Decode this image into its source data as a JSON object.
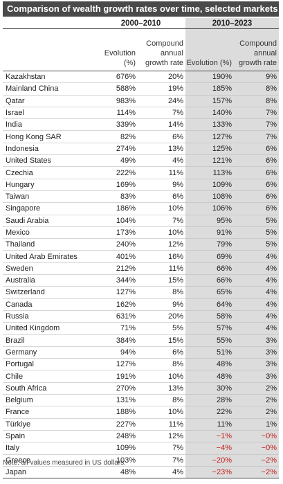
{
  "title": "Comparison of wealth growth rates over time, selected markets",
  "periods": [
    "2000–2010",
    "2010–2023"
  ],
  "headers": {
    "evolution": "Evolution (%)",
    "cagr": "Compound annual growth rate"
  },
  "rows": [
    {
      "country": "Kazakhstan",
      "evo1": "676%",
      "cagr1": "20%",
      "evo2": "190%",
      "cagr2": "9%"
    },
    {
      "country": "Mainland China",
      "evo1": "588%",
      "cagr1": "19%",
      "evo2": "185%",
      "cagr2": "8%"
    },
    {
      "country": "Qatar",
      "evo1": "983%",
      "cagr1": "24%",
      "evo2": "157%",
      "cagr2": "8%"
    },
    {
      "country": "Israel",
      "evo1": "114%",
      "cagr1": "7%",
      "evo2": "140%",
      "cagr2": "7%"
    },
    {
      "country": "India",
      "evo1": "339%",
      "cagr1": "14%",
      "evo2": "133%",
      "cagr2": "7%"
    },
    {
      "country": "Hong Kong SAR",
      "evo1": "82%",
      "cagr1": "6%",
      "evo2": "127%",
      "cagr2": "7%"
    },
    {
      "country": "Indonesia",
      "evo1": "274%",
      "cagr1": "13%",
      "evo2": "125%",
      "cagr2": "6%"
    },
    {
      "country": "United States",
      "evo1": "49%",
      "cagr1": "4%",
      "evo2": "121%",
      "cagr2": "6%"
    },
    {
      "country": "Czechia",
      "evo1": "222%",
      "cagr1": "11%",
      "evo2": "113%",
      "cagr2": "6%"
    },
    {
      "country": "Hungary",
      "evo1": "169%",
      "cagr1": "9%",
      "evo2": "109%",
      "cagr2": "6%"
    },
    {
      "country": "Taiwan",
      "evo1": "83%",
      "cagr1": "6%",
      "evo2": "108%",
      "cagr2": "6%"
    },
    {
      "country": "Singapore",
      "evo1": "186%",
      "cagr1": "10%",
      "evo2": "106%",
      "cagr2": "6%"
    },
    {
      "country": "Saudi Arabia",
      "evo1": "104%",
      "cagr1": "7%",
      "evo2": "95%",
      "cagr2": "5%"
    },
    {
      "country": "Mexico",
      "evo1": "173%",
      "cagr1": "10%",
      "evo2": "91%",
      "cagr2": "5%"
    },
    {
      "country": "Thailand",
      "evo1": "240%",
      "cagr1": "12%",
      "evo2": "79%",
      "cagr2": "5%"
    },
    {
      "country": "United Arab Emirates",
      "evo1": "401%",
      "cagr1": "16%",
      "evo2": "69%",
      "cagr2": "4%"
    },
    {
      "country": "Sweden",
      "evo1": "212%",
      "cagr1": "11%",
      "evo2": "66%",
      "cagr2": "4%"
    },
    {
      "country": "Australia",
      "evo1": "344%",
      "cagr1": "15%",
      "evo2": "66%",
      "cagr2": "4%"
    },
    {
      "country": "Switzerland",
      "evo1": "127%",
      "cagr1": "8%",
      "evo2": "65%",
      "cagr2": "4%"
    },
    {
      "country": "Canada",
      "evo1": "162%",
      "cagr1": "9%",
      "evo2": "64%",
      "cagr2": "4%"
    },
    {
      "country": "Russia",
      "evo1": "631%",
      "cagr1": "20%",
      "evo2": "58%",
      "cagr2": "4%"
    },
    {
      "country": "United Kingdom",
      "evo1": "71%",
      "cagr1": "5%",
      "evo2": "57%",
      "cagr2": "4%"
    },
    {
      "country": "Brazil",
      "evo1": "384%",
      "cagr1": "15%",
      "evo2": "55%",
      "cagr2": "3%"
    },
    {
      "country": "Germany",
      "evo1": "94%",
      "cagr1": "6%",
      "evo2": "51%",
      "cagr2": "3%"
    },
    {
      "country": "Portugal",
      "evo1": "127%",
      "cagr1": "8%",
      "evo2": "48%",
      "cagr2": "3%"
    },
    {
      "country": "Chile",
      "evo1": "191%",
      "cagr1": "10%",
      "evo2": "48%",
      "cagr2": "3%"
    },
    {
      "country": "South Africa",
      "evo1": "270%",
      "cagr1": "13%",
      "evo2": "30%",
      "cagr2": "2%"
    },
    {
      "country": "Belgium",
      "evo1": "131%",
      "cagr1": "8%",
      "evo2": "28%",
      "cagr2": "2%"
    },
    {
      "country": "France",
      "evo1": "188%",
      "cagr1": "10%",
      "evo2": "22%",
      "cagr2": "2%"
    },
    {
      "country": "Türkiye",
      "evo1": "227%",
      "cagr1": "11%",
      "evo2": "11%",
      "cagr2": "1%"
    },
    {
      "country": "Spain",
      "evo1": "248%",
      "cagr1": "12%",
      "evo2": "−1%",
      "cagr2": "−0%"
    },
    {
      "country": "Italy",
      "evo1": "109%",
      "cagr1": "7%",
      "evo2": "−4%",
      "cagr2": "−0%"
    },
    {
      "country": "Greece",
      "evo1": "103%",
      "cagr1": "7%",
      "evo2": "−20%",
      "cagr2": "−2%"
    },
    {
      "country": "Japan",
      "evo1": "48%",
      "cagr1": "4%",
      "evo2": "−23%",
      "cagr2": "−2%"
    }
  ],
  "note": "Note: all values measured in US dollars.",
  "colors": {
    "title_bg": "#4a4a4a",
    "shade": "#dcdcdc",
    "negative": "#c0201c"
  }
}
